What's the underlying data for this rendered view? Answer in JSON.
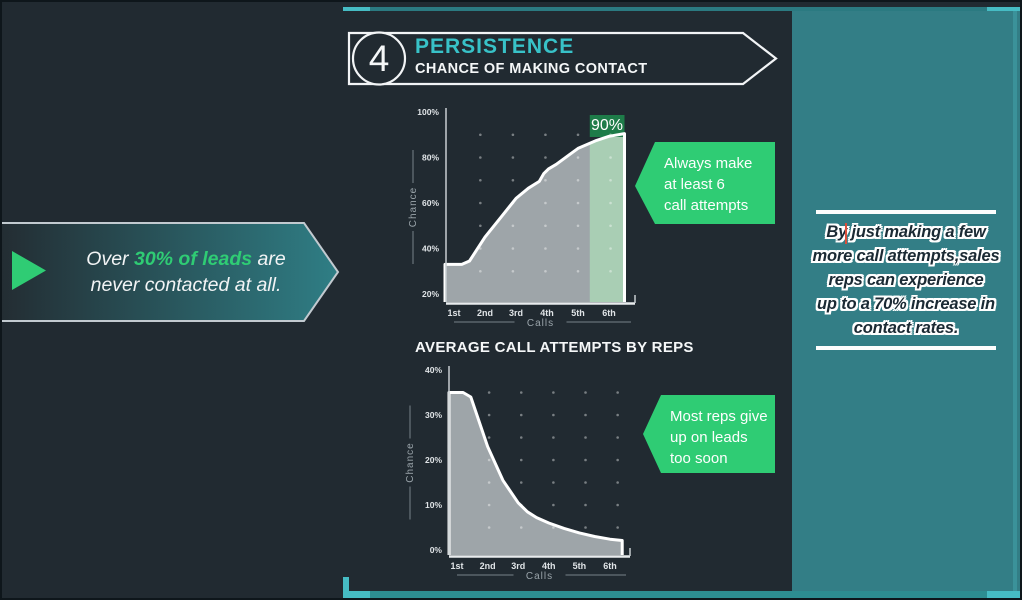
{
  "colors": {
    "background": "#212A31",
    "teal_accent": "#38C2C8",
    "teal_bright": "#46BCC4",
    "panel_teal": "#337E86",
    "green": "#2FCC74",
    "chart_gray": "#9EA5A9",
    "highlight_band": "#A9CEB4",
    "highlight_box": "#1E7C49"
  },
  "header": {
    "number": "4",
    "title": "PERSISTENCE",
    "subtitle": "CHANCE OF MAKING CONTACT"
  },
  "left_banner": {
    "pre": "Over ",
    "highlight": "30% of leads",
    "post": " are",
    "line2": "never contacted at all."
  },
  "callouts": [
    {
      "lines": [
        "Always make",
        "at least 6",
        "call attempts"
      ]
    },
    {
      "lines": [
        "Most reps give",
        "up on leads",
        "too soon"
      ]
    }
  ],
  "right_panel": {
    "lines": [
      "By just making a few",
      "more call attempts,sales",
      "reps can experience",
      "up to a 70% increase in",
      "contact rates."
    ]
  },
  "chart_data": [
    {
      "type": "area",
      "title": "",
      "ylabel": "Chance",
      "xlabel": "Calls",
      "categories": [
        "1st",
        "2nd",
        "3rd",
        "4th",
        "5th",
        "6th"
      ],
      "values": [
        33,
        45,
        62,
        75,
        85,
        90
      ],
      "curve_points": [
        [
          -0.29,
          33
        ],
        [
          0.25,
          33
        ],
        [
          0.5,
          34.5
        ],
        [
          1,
          45
        ],
        [
          1.5,
          53.5
        ],
        [
          2,
          62
        ],
        [
          2.4,
          66.5
        ],
        [
          2.75,
          69.5
        ],
        [
          2.9,
          73
        ],
        [
          3.05,
          75
        ],
        [
          3.3,
          77
        ],
        [
          3.7,
          81
        ],
        [
          4,
          84
        ],
        [
          4.6,
          87.5
        ],
        [
          5,
          89.3
        ],
        [
          5.5,
          90.5
        ]
      ],
      "ylim": [
        20,
        100
      ],
      "yticks": [
        20,
        40,
        60,
        80,
        100
      ],
      "ytick_labels": [
        "20%",
        "40%",
        "60%",
        "80%",
        "100%"
      ],
      "grid_dots": true,
      "legend": "none",
      "highlight": {
        "from": 4.38,
        "label": "90%",
        "band_color": "#A9CEB4",
        "box_color": "#1E7C49"
      },
      "area_color": "#9EA5A9",
      "line_color": "#FFFFFF"
    },
    {
      "type": "area",
      "title": "AVERAGE CALL ATTEMPTS BY REPS",
      "ylabel": "Chance",
      "xlabel": "Calls",
      "categories": [
        "1st",
        "2nd",
        "3rd",
        "4th",
        "5th",
        "6th"
      ],
      "values": [
        35,
        23,
        11,
        7,
        4.5,
        2.5
      ],
      "curve_points": [
        [
          -0.26,
          35
        ],
        [
          0.2,
          35
        ],
        [
          0.45,
          34
        ],
        [
          1,
          23
        ],
        [
          1.5,
          15.5
        ],
        [
          2,
          10.5
        ],
        [
          2.3,
          8.5
        ],
        [
          2.6,
          7.2
        ],
        [
          3,
          6
        ],
        [
          3.5,
          4.8
        ],
        [
          4,
          3.8
        ],
        [
          4.5,
          3
        ],
        [
          5,
          2.4
        ],
        [
          5.4,
          2.1
        ]
      ],
      "ylim": [
        0,
        40
      ],
      "yticks": [
        0,
        10,
        20,
        30,
        40
      ],
      "ytick_labels": [
        "0%",
        "10%",
        "20%",
        "30%",
        "40%"
      ],
      "grid_dots": true,
      "legend": "none",
      "area_color": "#9EA5A9",
      "line_color": "#FFFFFF"
    }
  ]
}
